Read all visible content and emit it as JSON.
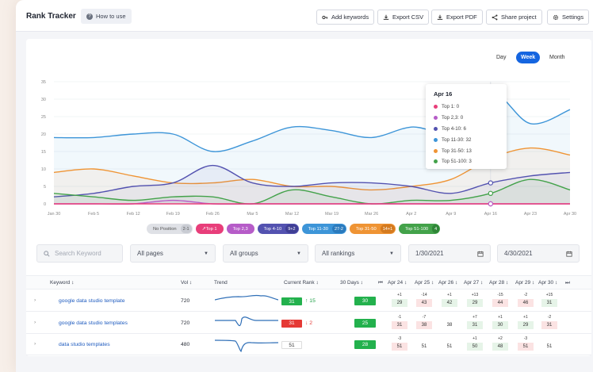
{
  "app": {
    "title": "Rank Tracker",
    "how_to_use": "How to use"
  },
  "toolbar": {
    "add_keywords": "Add keywords",
    "export_csv": "Export CSV",
    "export_pdf": "Export PDF",
    "share_project": "Share project",
    "settings": "Settings"
  },
  "period": {
    "day": "Day",
    "week": "Week",
    "month": "Month",
    "selected": "Week"
  },
  "chart_data": {
    "type": "area",
    "x": [
      "Jan 30",
      "Feb 5",
      "Feb 12",
      "Feb 19",
      "Feb 26",
      "Mar 5",
      "Mar 12",
      "Mar 19",
      "Mar 26",
      "Apr 2",
      "Apr 9",
      "Apr 16",
      "Apr 23",
      "Apr 30"
    ],
    "yticks": [
      0,
      5,
      10,
      15,
      20,
      25,
      30,
      35
    ],
    "ylim": [
      0,
      35
    ],
    "series": [
      {
        "name": "Top 1",
        "color": "#e83e7a",
        "values": [
          0,
          0,
          0,
          0,
          0,
          0,
          0,
          0,
          0,
          0,
          0,
          0,
          0,
          0
        ]
      },
      {
        "name": "Top 2,3",
        "color": "#b65cc8",
        "values": [
          0,
          0,
          0,
          1,
          0,
          0,
          0,
          0,
          0,
          0,
          0,
          0,
          0,
          0
        ]
      },
      {
        "name": "Top 4-10",
        "color": "#5352b0",
        "values": [
          2,
          3,
          5,
          6,
          11,
          6,
          5,
          6,
          6,
          5,
          3,
          6,
          8,
          9
        ]
      },
      {
        "name": "Top 11-30",
        "color": "#3d95d8",
        "values": [
          19,
          19,
          20,
          20,
          15,
          18,
          22,
          21,
          19,
          22,
          21,
          32,
          23,
          27
        ]
      },
      {
        "name": "Top 31-50",
        "color": "#ef9434",
        "values": [
          9,
          10,
          8,
          6,
          6,
          7,
          5,
          5,
          4,
          5,
          7,
          13,
          16,
          14
        ]
      },
      {
        "name": "Top 51-100",
        "color": "#43a24a",
        "values": [
          3,
          2,
          1,
          2,
          2,
          0,
          4,
          2,
          0,
          1,
          1,
          3,
          7,
          4
        ]
      }
    ],
    "tooltip": {
      "title": "Apr 16",
      "rows": [
        "Top 1: 0",
        "Top 2,3: 0",
        "Top 4-10: 6",
        "Top 11-30: 32",
        "Top 31-50: 13",
        "Top 51-100: 3"
      ]
    }
  },
  "legend": [
    {
      "label": "No Position",
      "count": "2-1",
      "color": "#dfe1e6",
      "text": "#555",
      "cntbg": "#c9ccd3"
    },
    {
      "label": "Top 1",
      "count": "",
      "color": "#e83e7a",
      "text": "#fff",
      "cntbg": ""
    },
    {
      "label": "Top 2,3",
      "count": "",
      "color": "#b65cc8",
      "text": "#fff",
      "cntbg": ""
    },
    {
      "label": "Top 4-10",
      "count": "9+2",
      "color": "#5352b0",
      "text": "#fff",
      "cntbg": "#3f3e94"
    },
    {
      "label": "Top 11-30",
      "count": "27-2",
      "color": "#3d95d8",
      "text": "#fff",
      "cntbg": "#2a7abd"
    },
    {
      "label": "Top 31-50",
      "count": "14+1",
      "color": "#ef9434",
      "text": "#fff",
      "cntbg": "#d47a1f"
    },
    {
      "label": "Top 51-100",
      "count": "4",
      "color": "#43a24a",
      "text": "#fff",
      "cntbg": "#2f8637"
    }
  ],
  "filters": {
    "search_placeholder": "Search Keyword",
    "pages": "All pages",
    "groups": "All groups",
    "rankings": "All rankings",
    "date_from": "1/30/2021",
    "date_to": "4/30/2021"
  },
  "table": {
    "headers": {
      "keyword": "Keyword",
      "vol": "Vol",
      "trend": "Trend",
      "current_rank": "Current Rank",
      "days30": "30 Days"
    },
    "day_headers": [
      "Apr 24",
      "Apr 25",
      "Apr 26",
      "Apr 27",
      "Apr 28",
      "Apr 29",
      "Apr 30"
    ],
    "rows": [
      {
        "keyword": "google data studio template",
        "vol": "720",
        "rank": "31",
        "rank_color": "#23b14d",
        "change": "15",
        "change_dir": "up",
        "days30": "30",
        "days": [
          {
            "v": "29",
            "d": "+1",
            "c": "#e6f4e8"
          },
          {
            "v": "43",
            "d": "-14",
            "c": "#fbe3e3"
          },
          {
            "v": "42",
            "d": "+1",
            "c": "#e6f4e8"
          },
          {
            "v": "29",
            "d": "+13",
            "c": "#e6f4e8"
          },
          {
            "v": "44",
            "d": "-15",
            "c": "#fbe3e3"
          },
          {
            "v": "46",
            "d": "-2",
            "c": "#fbe3e3"
          },
          {
            "v": "31",
            "d": "+15",
            "c": "#e6f4e8"
          }
        ]
      },
      {
        "keyword": "google data studio templates",
        "vol": "720",
        "rank": "31",
        "rank_color": "#e53935",
        "change": "2",
        "change_dir": "down",
        "days30": "25",
        "days": [
          {
            "v": "31",
            "d": "-1",
            "c": "#fbe3e3"
          },
          {
            "v": "38",
            "d": "-7",
            "c": "#fbe3e3"
          },
          {
            "v": "38",
            "d": "",
            "c": "#ffffff"
          },
          {
            "v": "31",
            "d": "+7",
            "c": "#e6f4e8"
          },
          {
            "v": "30",
            "d": "+1",
            "c": "#e6f4e8"
          },
          {
            "v": "29",
            "d": "+1",
            "c": "#e6f4e8"
          },
          {
            "v": "31",
            "d": "-2",
            "c": "#fbe3e3"
          }
        ]
      },
      {
        "keyword": "data studio templates",
        "vol": "480",
        "rank": "51",
        "rank_color": "#ffffff",
        "change": "",
        "change_dir": "none",
        "days30": "28",
        "days": [
          {
            "v": "51",
            "d": "-3",
            "c": "#fbe3e3"
          },
          {
            "v": "51",
            "d": "",
            "c": "#ffffff"
          },
          {
            "v": "51",
            "d": "",
            "c": "#ffffff"
          },
          {
            "v": "50",
            "d": "+1",
            "c": "#e6f4e8"
          },
          {
            "v": "48",
            "d": "+2",
            "c": "#e6f4e8"
          },
          {
            "v": "51",
            "d": "-3",
            "c": "#fbe3e3"
          },
          {
            "v": "51",
            "d": "",
            "c": "#ffffff"
          }
        ]
      }
    ]
  }
}
